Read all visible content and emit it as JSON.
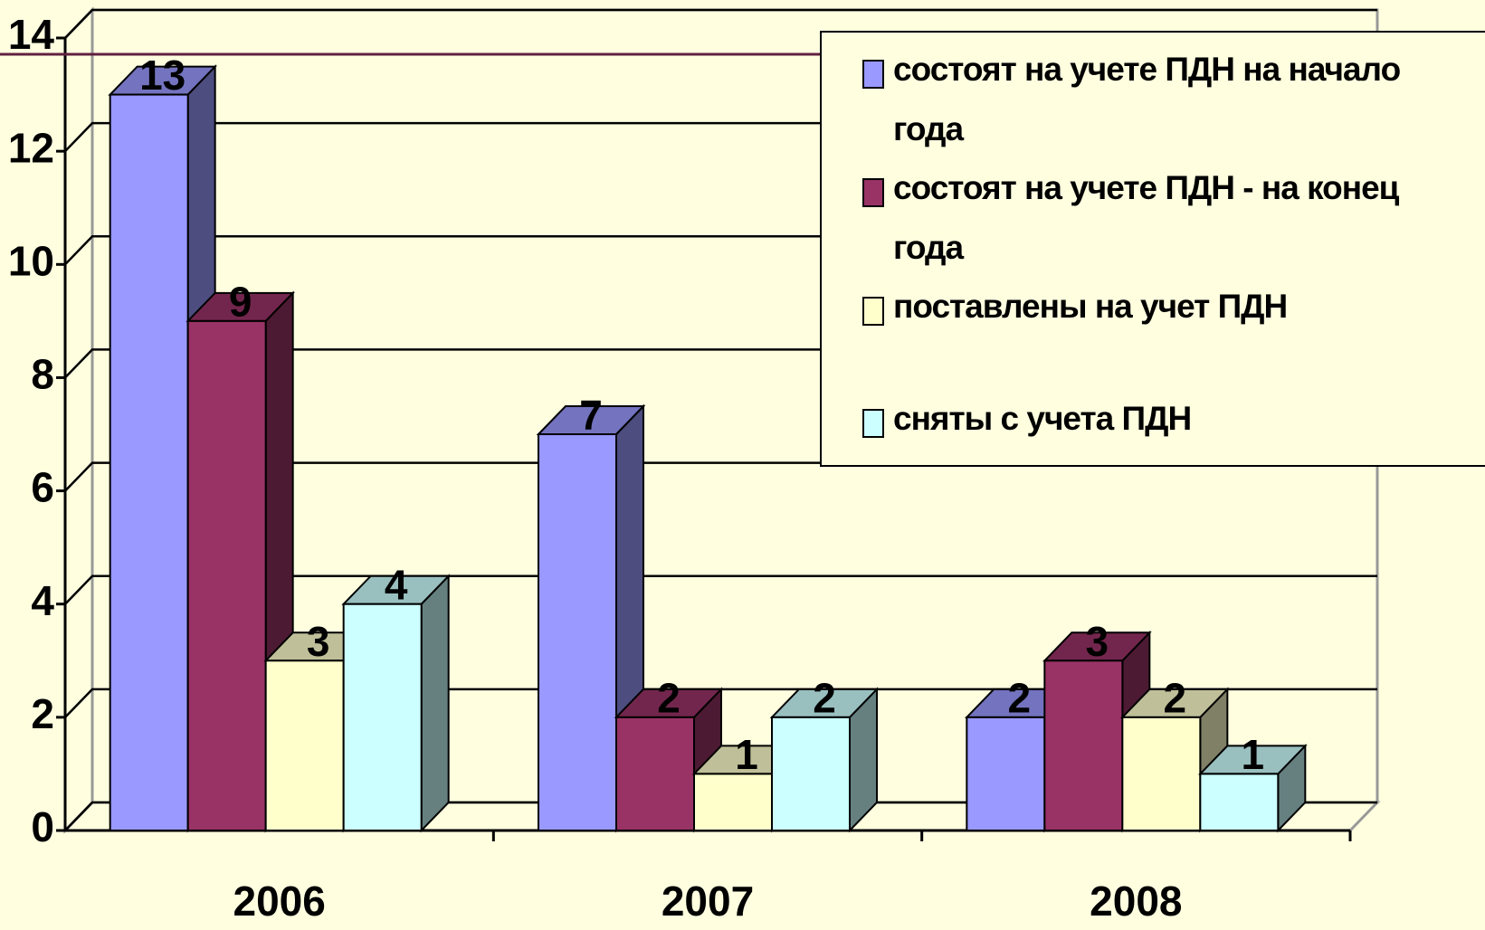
{
  "chart_data": {
    "type": "bar3d",
    "categories": [
      "2006",
      "2007",
      "2008"
    ],
    "series": [
      {
        "name": "состоят на учете ПДН на начало года",
        "color": "#9999ff",
        "values": [
          13,
          7,
          2
        ]
      },
      {
        "name": "состоят на учете ПДН - на конец года",
        "color": "#993366",
        "values": [
          9,
          2,
          3
        ]
      },
      {
        "name": "поставлены на учет ПДН",
        "color": "#ffffcc",
        "values": [
          3,
          1,
          2
        ]
      },
      {
        "name": "сняты с учета ПДН",
        "color": "#ccffff",
        "values": [
          4,
          2,
          1
        ]
      }
    ],
    "ylim": [
      0,
      14
    ],
    "yticks": [
      0,
      2,
      4,
      6,
      8,
      10,
      12,
      14
    ],
    "grid": true,
    "legend": "top-right"
  }
}
